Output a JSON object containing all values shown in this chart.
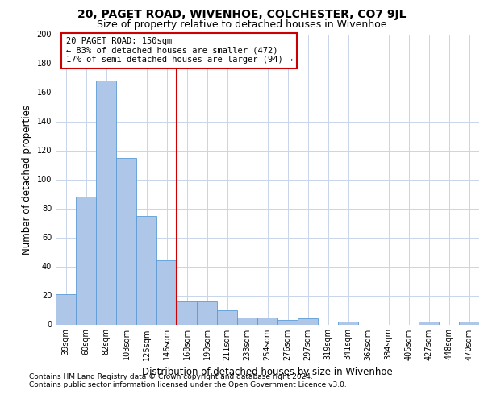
{
  "title1": "20, PAGET ROAD, WIVENHOE, COLCHESTER, CO7 9JL",
  "title2": "Size of property relative to detached houses in Wivenhoe",
  "xlabel": "Distribution of detached houses by size in Wivenhoe",
  "ylabel": "Number of detached properties",
  "categories": [
    "39sqm",
    "60sqm",
    "82sqm",
    "103sqm",
    "125sqm",
    "146sqm",
    "168sqm",
    "190sqm",
    "211sqm",
    "233sqm",
    "254sqm",
    "276sqm",
    "297sqm",
    "319sqm",
    "341sqm",
    "362sqm",
    "384sqm",
    "405sqm",
    "427sqm",
    "448sqm",
    "470sqm"
  ],
  "values": [
    21,
    88,
    168,
    115,
    75,
    44,
    16,
    16,
    10,
    5,
    5,
    3,
    4,
    0,
    2,
    0,
    0,
    0,
    2,
    0,
    2
  ],
  "bar_color": "#aec6e8",
  "bar_edge_color": "#5b9bd5",
  "annotation_text": "20 PAGET ROAD: 150sqm\n← 83% of detached houses are smaller (472)\n17% of semi-detached houses are larger (94) →",
  "annotation_box_color": "#ffffff",
  "annotation_box_edge_color": "#cc0000",
  "vline_color": "#cc0000",
  "ylim": [
    0,
    200
  ],
  "yticks": [
    0,
    20,
    40,
    60,
    80,
    100,
    120,
    140,
    160,
    180,
    200
  ],
  "footnote1": "Contains HM Land Registry data © Crown copyright and database right 2024.",
  "footnote2": "Contains public sector information licensed under the Open Government Licence v3.0.",
  "title1_fontsize": 10,
  "title2_fontsize": 9,
  "xlabel_fontsize": 8.5,
  "ylabel_fontsize": 8.5,
  "tick_fontsize": 7,
  "annotation_fontsize": 7.5,
  "footnote_fontsize": 6.5,
  "background_color": "#ffffff",
  "grid_color": "#c8d4e8"
}
